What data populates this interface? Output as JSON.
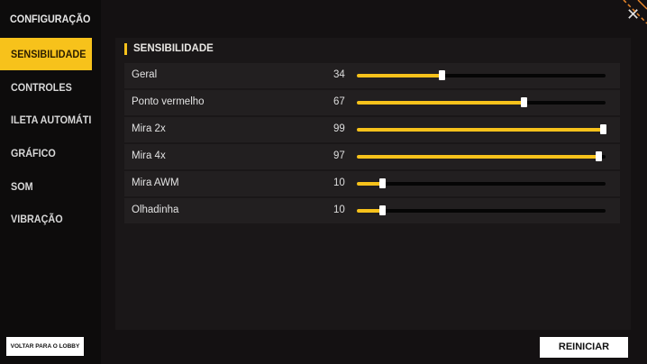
{
  "sidebar": {
    "title": "CONFIGURAÇÃO",
    "items": [
      {
        "label": "SENSIBILIDADE",
        "active": true
      },
      {
        "label": "CONTROLES"
      },
      {
        "label": "ILETA AUTOMÁTI"
      },
      {
        "label": "GRÁFICO"
      },
      {
        "label": "SOM"
      },
      {
        "label": "VIBRAÇÃO"
      }
    ]
  },
  "panel": {
    "heading": "SENSIBILIDADE",
    "rows": [
      {
        "label": "Geral",
        "value": "34",
        "fraction": 0.34
      },
      {
        "label": "Ponto vermelho",
        "value": "67",
        "fraction": 0.67
      },
      {
        "label": "Mira 2x",
        "value": "99",
        "fraction": 0.99
      },
      {
        "label": "Mira 4x",
        "value": "97",
        "fraction": 0.97
      },
      {
        "label": "Mira AWM",
        "value": "10",
        "fraction": 0.1
      },
      {
        "label": "Olhadinha",
        "value": "10",
        "fraction": 0.1
      }
    ]
  },
  "buttons": {
    "back": "VOLTAR PARA O LOBBY",
    "reset": "REINICIAR"
  },
  "icons": {
    "close": "✕"
  },
  "colors": {
    "accent": "#f7c21b"
  }
}
